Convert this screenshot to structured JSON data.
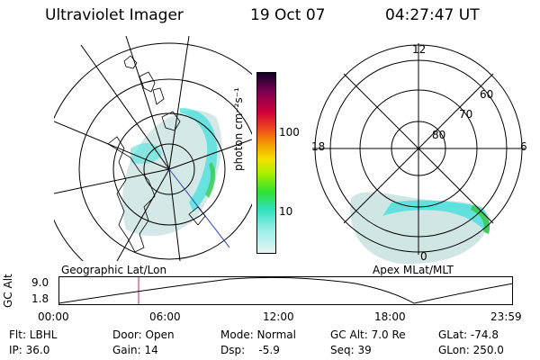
{
  "header": {
    "instrument": "Ultraviolet Imager",
    "date": "19 Oct 07",
    "time": "04:27:47 UT"
  },
  "colorbar": {
    "unit_label": "photon cm⁻²s⁻¹",
    "ticks": [
      "100",
      "10"
    ]
  },
  "polar_plot": {
    "mlt_labels": {
      "top": "12",
      "left": "18",
      "right": "6",
      "bottom": "0"
    },
    "lat_labels": [
      "60",
      "70",
      "80"
    ]
  },
  "altitude_plot": {
    "ylabel": "GC Alt",
    "yticks": [
      "9.0",
      "1.8"
    ],
    "left_caption": "Geographic Lat/Lon",
    "right_caption": "Apex MLat/MLT",
    "xticks": [
      "00:00",
      "06:00",
      "12:00",
      "18:00",
      "23:59"
    ]
  },
  "info": {
    "flt": "Flt: LBHL",
    "ip": "IP: 36.0",
    "door": "Door: Open",
    "gain": "Gain: 14",
    "mode": "Mode: Normal",
    "dsp": "Dsp:    -5.9",
    "gcalt": "GC Alt: 7.0 Re",
    "seq": "Seq: 39",
    "glat": "GLat: -74.8",
    "glon": "GLon: 250.0"
  },
  "colors": {
    "aurora_light": "#c9e4e2",
    "aurora_cyan": "#45e0dc",
    "aurora_green": "#3ccc5a",
    "marker": "#d0186a"
  }
}
